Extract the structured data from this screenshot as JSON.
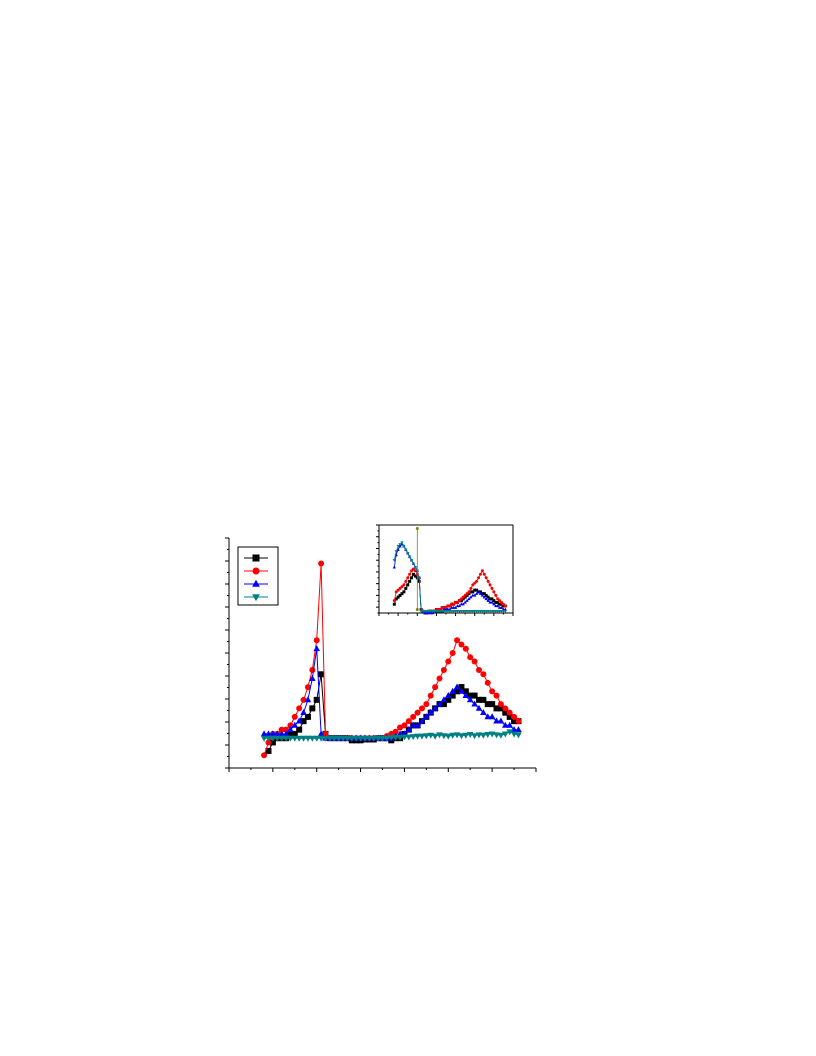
{
  "chart_data": [
    {
      "type": "line",
      "role": "main",
      "title": "",
      "xlabel": "",
      "ylabel": "",
      "xlim": [
        0,
        70
      ],
      "ylim": [
        -7,
        47
      ],
      "x_major_ticks": [
        0,
        10,
        20,
        30,
        40,
        50,
        60,
        70
      ],
      "y_tick_count": 21,
      "grid": false,
      "legend": {
        "position": "top-left",
        "entries": [
          "",
          "",
          "",
          ""
        ]
      },
      "series": [
        {
          "color": "#000000",
          "marker": "square",
          "x": [
            9,
            10,
            11,
            12,
            13,
            14,
            15,
            16,
            17,
            18,
            19,
            20,
            21,
            22,
            23,
            24,
            25,
            26,
            27,
            28,
            29,
            30,
            31,
            32,
            33,
            34,
            35,
            36,
            37,
            38,
            39,
            40,
            41,
            42,
            43,
            44,
            45,
            46,
            47,
            48,
            49,
            50,
            51,
            52,
            53,
            54,
            55,
            56,
            57,
            58,
            59,
            60,
            61,
            62,
            63,
            64,
            65,
            66
          ],
          "values": [
            -3,
            -1,
            0,
            0,
            0,
            1,
            1,
            2,
            4,
            5,
            7,
            9,
            15,
            1,
            0,
            0,
            0,
            0,
            0,
            -0.5,
            -0.5,
            -0.5,
            -0.3,
            -0.3,
            -0.3,
            0,
            0,
            0,
            -0.5,
            0,
            0,
            1,
            2,
            3,
            3,
            4,
            5,
            6,
            7,
            8,
            8,
            9,
            10,
            11,
            12,
            11,
            10,
            10,
            9,
            9,
            8,
            8,
            7,
            7,
            6,
            5,
            4,
            4
          ]
        },
        {
          "color": "#ff0000",
          "marker": "circle",
          "x": [
            8,
            9,
            10,
            11,
            12,
            13,
            14,
            15,
            16,
            17,
            18,
            19,
            20,
            21,
            22,
            23,
            24,
            25,
            26,
            27,
            28,
            29,
            30,
            31,
            32,
            33,
            34,
            35,
            36,
            37,
            38,
            39,
            40,
            41,
            42,
            43,
            44,
            45,
            46,
            47,
            48,
            49,
            50,
            51,
            52,
            53,
            54,
            55,
            56,
            57,
            58,
            59,
            60,
            61,
            62,
            63,
            64,
            65,
            66
          ],
          "values": [
            -4,
            -1,
            1,
            1,
            2,
            2,
            3,
            5,
            7,
            9,
            12,
            16,
            23,
            41,
            1,
            0,
            0,
            0,
            0,
            0,
            0,
            0,
            0,
            0,
            0,
            0,
            0,
            0,
            0.5,
            1,
            1.5,
            2.5,
            3,
            4,
            5,
            6,
            7,
            8,
            10,
            12,
            14,
            16,
            18,
            20,
            23,
            22,
            21,
            19,
            18,
            16,
            15,
            13,
            11,
            10,
            8,
            7,
            6,
            5,
            4
          ]
        },
        {
          "color": "#0000ff",
          "marker": "triangle-up",
          "x": [
            8,
            9,
            10,
            11,
            12,
            13,
            14,
            15,
            16,
            17,
            18,
            19,
            20,
            21,
            22,
            23,
            24,
            25,
            26,
            27,
            28,
            29,
            30,
            31,
            32,
            33,
            34,
            35,
            36,
            37,
            38,
            39,
            40,
            41,
            42,
            43,
            44,
            45,
            46,
            47,
            48,
            49,
            50,
            51,
            52,
            53,
            54,
            55,
            56,
            57,
            58,
            59,
            60,
            61,
            62,
            63,
            64,
            65,
            66
          ],
          "values": [
            1,
            1,
            1,
            1,
            1,
            1,
            2,
            3,
            4,
            6,
            9,
            14,
            21,
            1,
            0,
            0,
            0,
            0,
            0,
            0,
            0,
            0,
            0,
            0,
            0,
            0,
            0,
            0,
            0,
            0,
            0.5,
            1,
            1,
            2,
            3,
            3,
            4,
            5,
            6,
            7,
            8,
            9,
            10,
            11,
            12,
            11,
            10,
            9,
            8,
            7,
            6,
            5,
            5,
            4,
            4,
            3,
            3,
            2,
            2
          ]
        },
        {
          "color": "#008080",
          "marker": "triangle-down",
          "x": [
            8,
            9,
            10,
            11,
            12,
            13,
            14,
            15,
            16,
            17,
            18,
            19,
            20,
            21,
            22,
            23,
            24,
            25,
            26,
            27,
            28,
            29,
            30,
            31,
            32,
            33,
            34,
            35,
            36,
            37,
            38,
            39,
            40,
            41,
            42,
            43,
            44,
            45,
            46,
            47,
            48,
            49,
            50,
            51,
            52,
            53,
            54,
            55,
            56,
            57,
            58,
            59,
            60,
            61,
            62,
            63,
            64,
            65,
            66
          ],
          "values": [
            0,
            0,
            0,
            0,
            0,
            0,
            0,
            0,
            0,
            0,
            0,
            0,
            0,
            0,
            0,
            0,
            0,
            0,
            0,
            0,
            0,
            0,
            0,
            0,
            0,
            0,
            0,
            0,
            0,
            0.2,
            0.2,
            0.2,
            0.3,
            0.3,
            0.4,
            0.5,
            0.5,
            0.6,
            0.7,
            0.5,
            0.8,
            0.6,
            0.5,
            0.7,
            0.8,
            0.6,
            0.7,
            0.9,
            0.6,
            0.8,
            0.7,
            0.9,
            1,
            0.8,
            0.7,
            1,
            1.5,
            1,
            0.8
          ]
        }
      ]
    },
    {
      "type": "line",
      "role": "inset",
      "title": "",
      "xlabel": "",
      "ylabel": "",
      "xlim": [
        0,
        70
      ],
      "ylim": [
        0,
        50
      ],
      "x_major_ticks": [
        0,
        10,
        20,
        30,
        40,
        50,
        60,
        70
      ],
      "y_tick_count": 16,
      "grid": false,
      "series": [
        {
          "color": "#000000",
          "marker": "square",
          "x": [
            8,
            9,
            10,
            11,
            12,
            13,
            14,
            15,
            16,
            17,
            18,
            19,
            20,
            21,
            22,
            23,
            24,
            25,
            26,
            27,
            28,
            29,
            30,
            31,
            32,
            33,
            34,
            35,
            36,
            37,
            38,
            39,
            40,
            41,
            42,
            43,
            44,
            45,
            46,
            47,
            48,
            49,
            50,
            51,
            52,
            53,
            54,
            55,
            56,
            57,
            58,
            59,
            60,
            61,
            62,
            63,
            64,
            65,
            66
          ],
          "values": [
            5,
            8,
            9,
            10,
            11,
            12,
            14,
            16,
            18,
            20,
            22,
            21,
            20,
            18,
            2,
            1,
            0,
            0,
            1,
            1,
            1,
            1,
            2,
            2,
            2,
            3,
            3,
            3,
            4,
            4,
            5,
            5,
            6,
            6,
            7,
            7,
            8,
            9,
            10,
            11,
            12,
            12,
            13,
            13,
            12,
            12,
            11,
            11,
            10,
            9,
            8,
            8,
            7,
            6,
            6,
            5,
            5,
            4,
            4
          ]
        },
        {
          "color": "#ff0000",
          "marker": "circle",
          "x": [
            8,
            9,
            10,
            11,
            12,
            13,
            14,
            15,
            16,
            17,
            18,
            19,
            20,
            21,
            22,
            23,
            24,
            25,
            26,
            27,
            28,
            29,
            30,
            31,
            32,
            33,
            34,
            35,
            36,
            37,
            38,
            39,
            40,
            41,
            42,
            43,
            44,
            45,
            46,
            47,
            48,
            49,
            50,
            51,
            52,
            53,
            54,
            55,
            56,
            57,
            58,
            59,
            60,
            61,
            62,
            63,
            64,
            65,
            66
          ],
          "values": [
            7,
            12,
            13,
            14,
            15,
            16,
            18,
            20,
            22,
            24,
            25,
            24,
            22,
            20,
            2,
            1,
            0,
            0,
            1,
            1,
            1,
            1,
            2,
            2,
            2,
            3,
            3,
            3,
            4,
            4,
            5,
            5,
            6,
            6,
            7,
            8,
            9,
            10,
            11,
            12,
            14,
            16,
            17,
            18,
            20,
            22,
            24,
            22,
            20,
            18,
            16,
            14,
            12,
            10,
            8,
            7,
            6,
            5,
            4
          ]
        },
        {
          "color": "#0000ff",
          "marker": "triangle-up",
          "x": [
            8,
            9,
            10,
            11,
            12,
            13,
            14,
            15,
            16,
            17,
            18,
            19,
            20,
            21,
            22,
            23,
            24,
            25,
            26,
            27,
            28,
            29,
            30,
            31,
            32,
            33,
            34,
            35,
            36,
            37,
            38,
            39,
            40,
            41,
            42,
            43,
            44,
            45,
            46,
            47,
            48,
            49,
            50,
            51,
            52,
            53,
            54,
            55,
            56,
            57,
            58,
            59,
            60,
            61,
            62,
            63,
            64,
            65,
            66
          ],
          "values": [
            26,
            33,
            36,
            38,
            39,
            38,
            36,
            34,
            32,
            30,
            28,
            26,
            24,
            20,
            2,
            1,
            0,
            0,
            0,
            0,
            0,
            1,
            1,
            1,
            1,
            1,
            2,
            2,
            2,
            2,
            3,
            3,
            3,
            4,
            4,
            5,
            5,
            6,
            7,
            8,
            9,
            10,
            10,
            11,
            12,
            11,
            10,
            9,
            8,
            7,
            6,
            6,
            5,
            4,
            4,
            3,
            3,
            2,
            2
          ]
        },
        {
          "color": "#008080",
          "marker": "triangle-down",
          "x": [
            8,
            9,
            10,
            11,
            12,
            13,
            14,
            15,
            16,
            17,
            18,
            19,
            20,
            21,
            22,
            23,
            24,
            25,
            26,
            27,
            28,
            29,
            30,
            31,
            32,
            33,
            34,
            35,
            36,
            37,
            38,
            39,
            40,
            41,
            42,
            43,
            44,
            45,
            46,
            47,
            48,
            49,
            50,
            51,
            52,
            53,
            54,
            55,
            56,
            57,
            58,
            59,
            60,
            61,
            62,
            63,
            64,
            65,
            66
          ],
          "values": [
            30,
            35,
            38,
            39,
            40,
            38,
            36,
            34,
            32,
            30,
            28,
            26,
            24,
            20,
            1,
            1,
            1,
            1,
            1,
            1,
            1,
            1,
            1,
            1,
            1,
            1,
            1,
            1,
            1,
            1,
            1,
            1,
            1,
            1,
            1,
            1,
            1,
            1,
            1,
            1,
            1,
            1,
            1,
            1,
            1,
            1,
            1,
            1,
            1,
            1,
            1,
            1,
            1,
            1,
            1,
            1,
            1,
            1,
            1
          ]
        },
        {
          "color": "#808000",
          "marker": "circle",
          "x": [
            20,
            20
          ],
          "values": [
            2,
            48
          ]
        }
      ]
    }
  ]
}
